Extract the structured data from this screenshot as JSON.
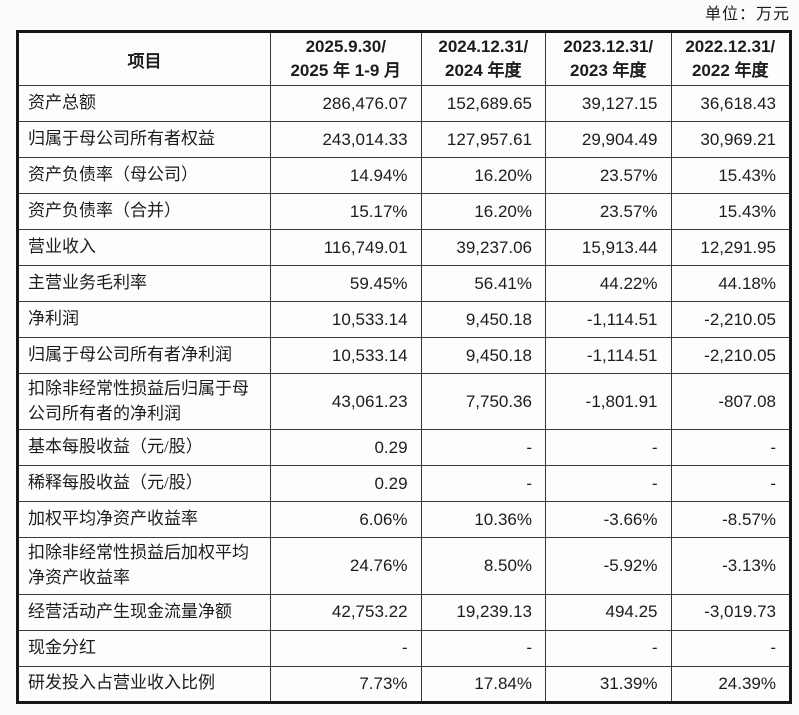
{
  "unit_label": "单位：万元",
  "table": {
    "columns": [
      {
        "line1": "项目",
        "line2": ""
      },
      {
        "line1": "2025.9.30/",
        "line2": "2025 年 1-9 月"
      },
      {
        "line1": "2024.12.31/",
        "line2": "2024 年度"
      },
      {
        "line1": "2023.12.31/",
        "line2": "2023 年度"
      },
      {
        "line1": "2022.12.31/",
        "line2": "2022 年度"
      }
    ],
    "rows": [
      {
        "label": "资产总额",
        "values": [
          "286,476.07",
          "152,689.65",
          "39,127.15",
          "36,618.43"
        ]
      },
      {
        "label": "归属于母公司所有者权益",
        "values": [
          "243,014.33",
          "127,957.61",
          "29,904.49",
          "30,969.21"
        ]
      },
      {
        "label": "资产负债率（母公司）",
        "values": [
          "14.94%",
          "16.20%",
          "23.57%",
          "15.43%"
        ]
      },
      {
        "label": "资产负债率（合并）",
        "values": [
          "15.17%",
          "16.20%",
          "23.57%",
          "15.43%"
        ]
      },
      {
        "label": "营业收入",
        "values": [
          "116,749.01",
          "39,237.06",
          "15,913.44",
          "12,291.95"
        ]
      },
      {
        "label": "主营业务毛利率",
        "values": [
          "59.45%",
          "56.41%",
          "44.22%",
          "44.18%"
        ]
      },
      {
        "label": "净利润",
        "values": [
          "10,533.14",
          "9,450.18",
          "-1,114.51",
          "-2,210.05"
        ]
      },
      {
        "label": "归属于母公司所有者净利润",
        "values": [
          "10,533.14",
          "9,450.18",
          "-1,114.51",
          "-2,210.05"
        ]
      },
      {
        "label": "扣除非经常性损益后归属于母公司所有者的净利润",
        "values": [
          "43,061.23",
          "7,750.36",
          "-1,801.91",
          "-807.08"
        ],
        "tall": true
      },
      {
        "label": "基本每股收益（元/股）",
        "values": [
          "0.29",
          "-",
          "-",
          "-"
        ]
      },
      {
        "label": "稀释每股收益（元/股）",
        "values": [
          "0.29",
          "-",
          "-",
          "-"
        ]
      },
      {
        "label": "加权平均净资产收益率",
        "values": [
          "6.06%",
          "10.36%",
          "-3.66%",
          "-8.57%"
        ]
      },
      {
        "label": "扣除非经常性损益后加权平均净资产收益率",
        "values": [
          "24.76%",
          "8.50%",
          "-5.92%",
          "-3.13%"
        ],
        "tall": true
      },
      {
        "label": "经营活动产生现金流量净额",
        "values": [
          "42,753.22",
          "19,239.13",
          "494.25",
          "-3,019.73"
        ]
      },
      {
        "label": "现金分红",
        "values": [
          "-",
          "-",
          "-",
          "-"
        ]
      },
      {
        "label": "研发投入占营业收入比例",
        "values": [
          "7.73%",
          "17.84%",
          "31.39%",
          "24.39%"
        ]
      }
    ]
  }
}
